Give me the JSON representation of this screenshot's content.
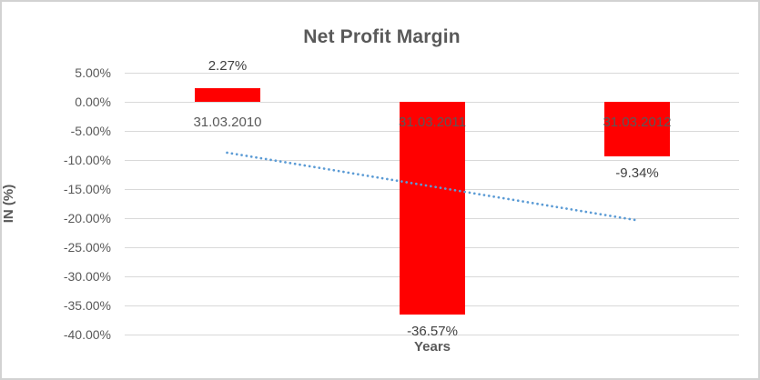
{
  "chart_data": {
    "type": "bar",
    "title": "Net Profit Margin",
    "xlabel": "Years",
    "ylabel": "IN (%)",
    "categories": [
      "31.03.2010",
      "31.03.2011",
      "31.03.2012"
    ],
    "series": [
      {
        "name": "Net Profit Margin",
        "values": [
          2.27,
          -36.57,
          -9.34
        ]
      }
    ],
    "data_labels": [
      "2.27%",
      "-36.57%",
      "-9.34%"
    ],
    "ylim": [
      -40,
      5
    ],
    "ytick_step": 5,
    "ytick_labels": [
      "5.00%",
      "0.00%",
      "-5.00%",
      "-10.00%",
      "-15.00%",
      "-20.00%",
      "-25.00%",
      "-30.00%",
      "-35.00%",
      "-40.00%"
    ],
    "grid": true,
    "legend": "none",
    "bar_color": "#ff0000",
    "trendline": {
      "type": "linear",
      "style": "dotted",
      "color": "#5b9bd5",
      "fit_values": [
        -8.74,
        -14.55,
        -20.35
      ]
    }
  },
  "colors": {
    "title_text": "#595959",
    "axis_text": "#595959",
    "data_label_text": "#404040",
    "gridline": "#d9d9d9",
    "bar": "#ff0000",
    "trendline": "#5b9bd5",
    "frame_border": "#d2d2d2",
    "background": "#ffffff"
  }
}
